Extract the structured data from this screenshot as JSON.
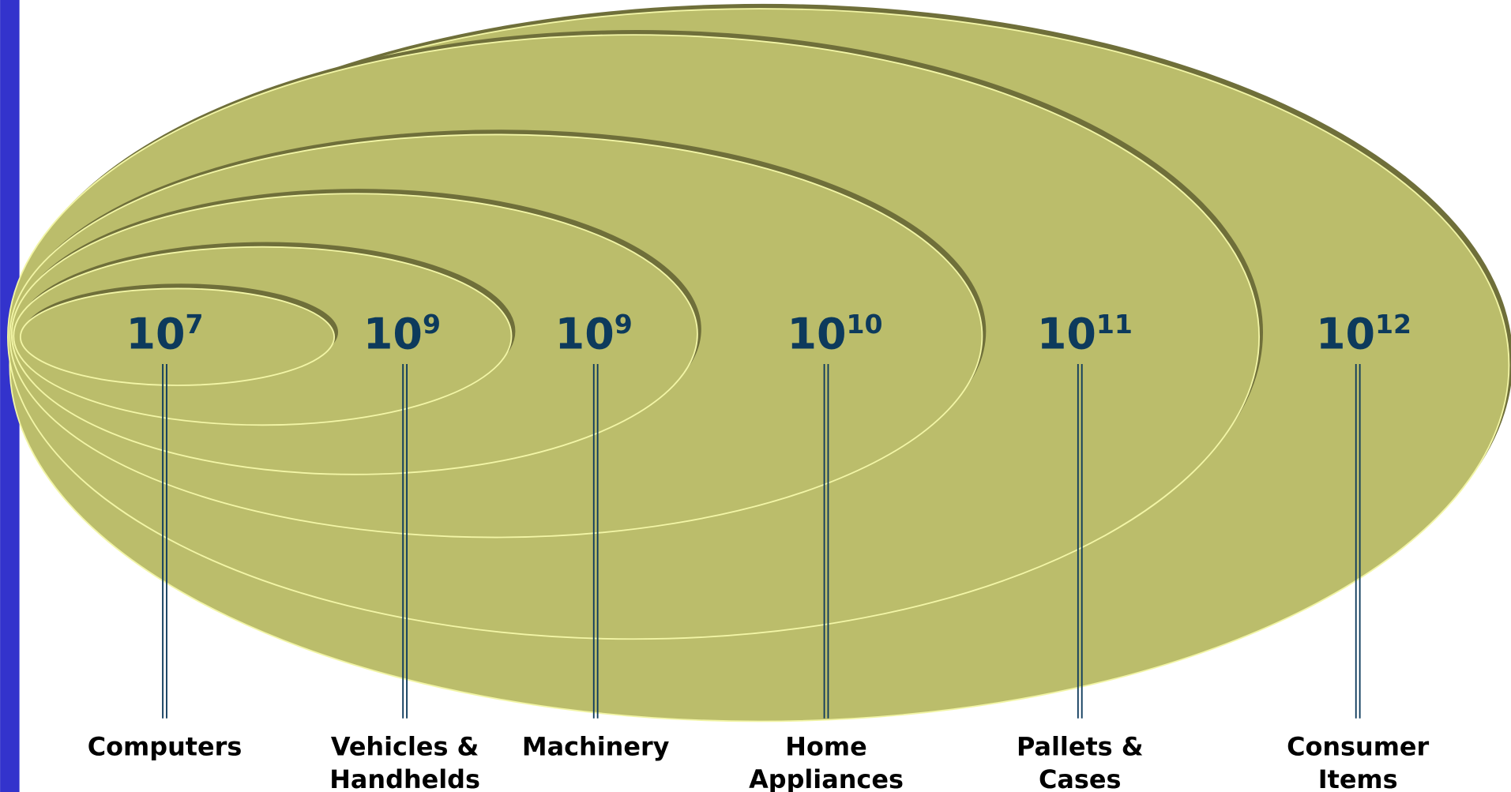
{
  "items": [
    {
      "base": "10",
      "exponent": "7",
      "label": [
        "Computers"
      ]
    },
    {
      "base": "10",
      "exponent": "9",
      "label": [
        "Vehicles &",
        "Handhelds"
      ]
    },
    {
      "base": "10",
      "exponent": "9",
      "label": [
        "Machinery"
      ]
    },
    {
      "base": "10",
      "exponent": "10",
      "label": [
        "Home",
        "Appliances"
      ]
    },
    {
      "base": "10",
      "exponent": "11",
      "label": [
        "Pallets &",
        "Cases"
      ]
    },
    {
      "base": "10",
      "exponent": "12",
      "label": [
        "Consumer",
        "Items"
      ]
    }
  ]
}
